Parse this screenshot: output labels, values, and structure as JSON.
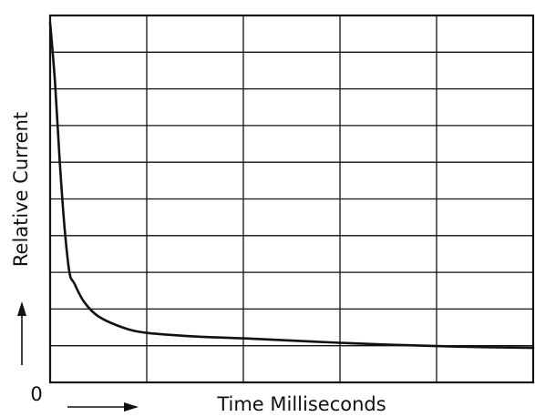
{
  "chart_data": {
    "type": "line",
    "title": "",
    "xlabel": "Time Milliseconds",
    "ylabel": "Relative Current",
    "origin_label": "0",
    "grid": true,
    "grid_columns": 5,
    "grid_rows": 10,
    "x_range": [
      0,
      1
    ],
    "y_range": [
      0,
      1
    ],
    "series": [
      {
        "x": [
          0.0,
          0.01,
          0.02,
          0.03,
          0.04,
          0.05,
          0.07,
          0.1,
          0.15,
          0.2,
          0.3,
          0.4,
          0.5,
          0.6,
          0.7,
          0.8,
          0.9,
          1.0
        ],
        "y": [
          0.98,
          0.82,
          0.6,
          0.42,
          0.3,
          0.27,
          0.22,
          0.18,
          0.15,
          0.135,
          0.125,
          0.12,
          0.114,
          0.108,
          0.103,
          0.099,
          0.096,
          0.094
        ]
      }
    ],
    "colors": {
      "line": "#111111",
      "grid": "#111111",
      "background": "#ffffff"
    }
  }
}
